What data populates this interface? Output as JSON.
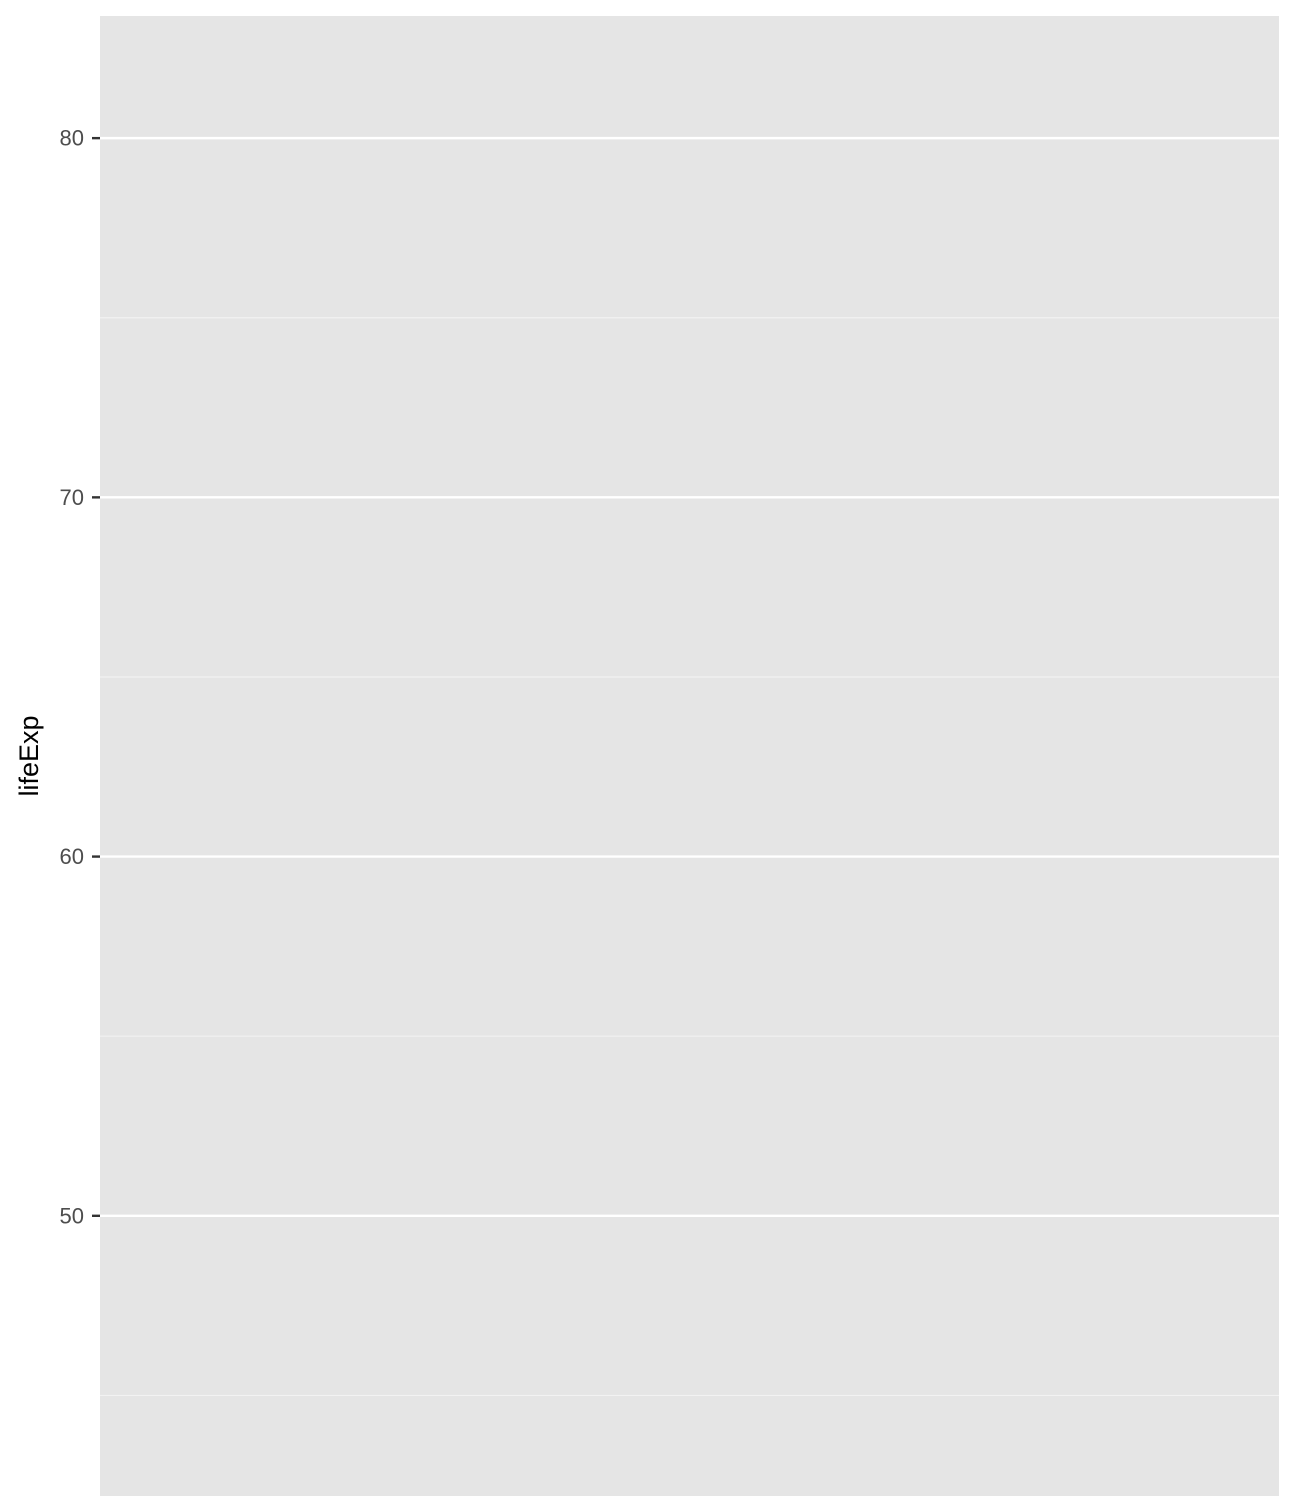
{
  "chart_data": {
    "type": "scatter",
    "title": "",
    "xlabel": "",
    "ylabel": "lifeExp",
    "x_axis_visible": false,
    "ylim": [
      42.2,
      83.4
    ],
    "y_ticks": [
      50,
      60,
      70,
      80
    ],
    "y_tick_labels": [
      "50",
      "60",
      "70",
      "80"
    ],
    "y_minor_grid": [
      45,
      55,
      65,
      75
    ],
    "grid": true,
    "legend": "none",
    "series": [],
    "colors": {
      "panel_background": "#e5e5e5",
      "grid_major": "#ffffff",
      "grid_minor": "#f2f2f2",
      "tick_text": "#4d4d4d",
      "tick_mark": "#333333",
      "axis_title": "#000000"
    }
  }
}
